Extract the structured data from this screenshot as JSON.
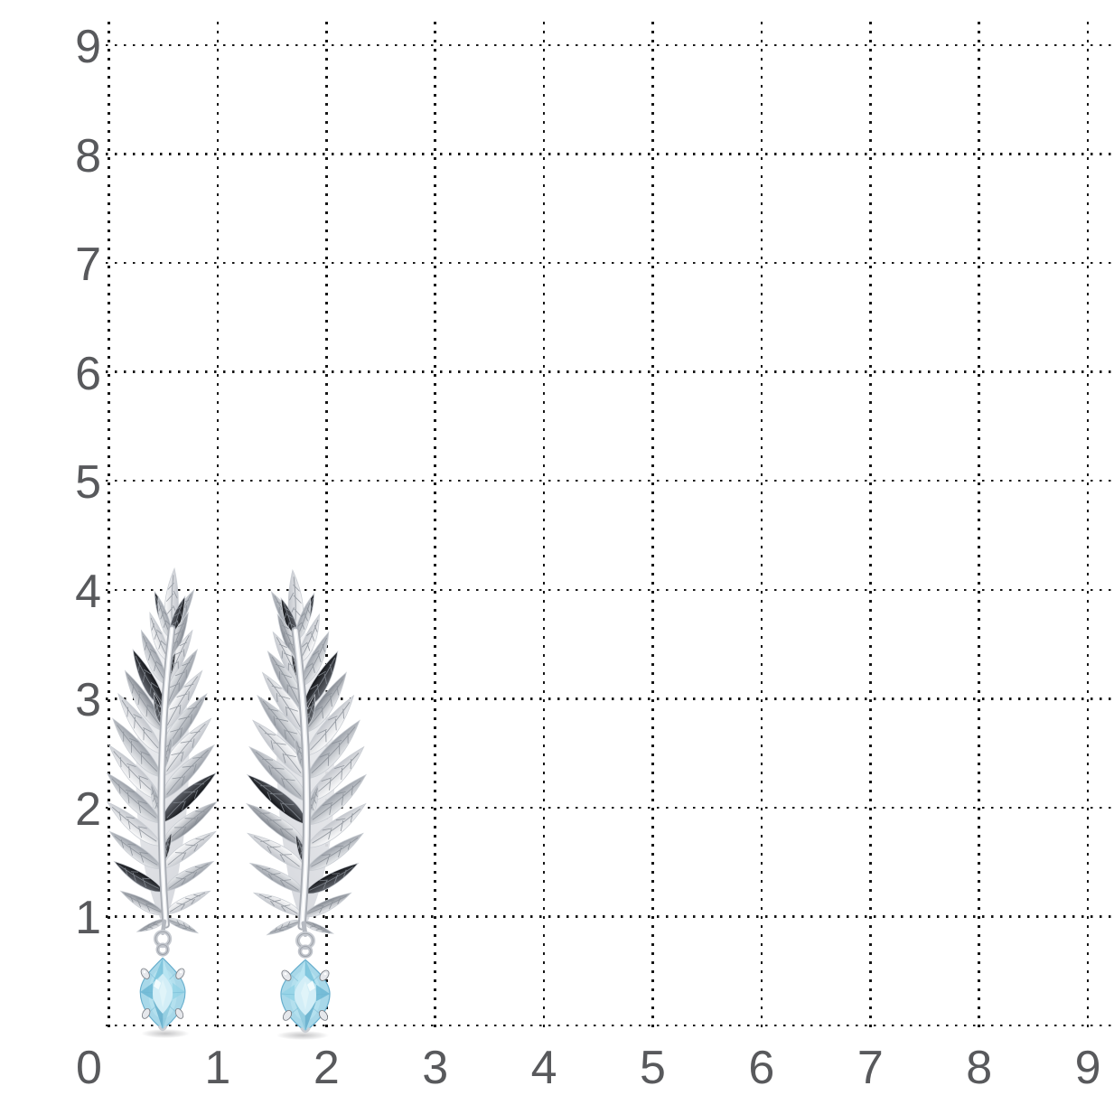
{
  "page": {
    "background_color": "#ffffff"
  },
  "measurement_grid": {
    "x_axis_labels": [
      "0",
      "1",
      "2",
      "3",
      "4",
      "5",
      "6",
      "7",
      "8",
      "9"
    ],
    "y_axis_labels": [
      "9",
      "8",
      "7",
      "6",
      "5",
      "4",
      "3",
      "2",
      "1"
    ],
    "unit": "1",
    "dot_color": "#161616",
    "label_color": "#58595c"
  },
  "product": {
    "description": "pair of silver feather drop earrings with light blue marquise-cut stones",
    "items": [
      "left-earring",
      "right-earring"
    ],
    "size_on_grid": {
      "width_units": "2.3",
      "height_units": "3.6"
    },
    "colors": {
      "metal_white": "#ffffff",
      "metal_light": "#eef0f2",
      "metal_mid": "#c6c9cf",
      "metal_gray": "#9fa4ac",
      "metal_dark": "#17191d",
      "stone_light": "#d6eff7",
      "stone_mid": "#a8d8e9",
      "stone_deep": "#6cb7d4",
      "stone_outline": "#66aecd",
      "shadow": "#3c3c41"
    }
  }
}
